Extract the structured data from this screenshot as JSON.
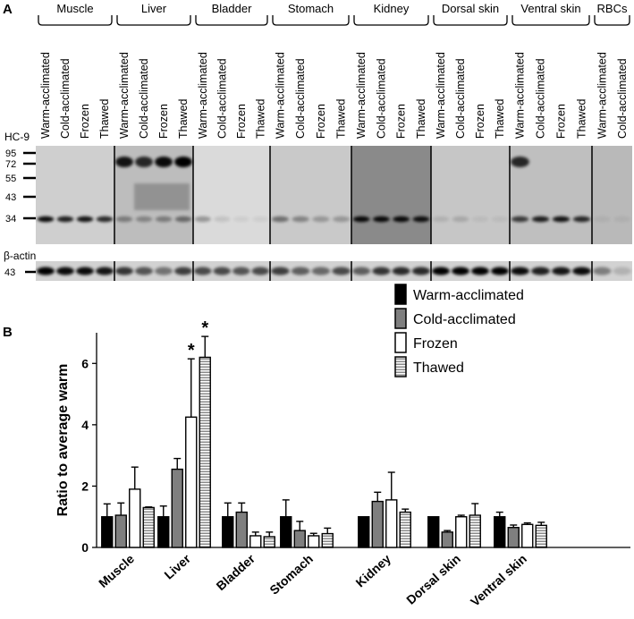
{
  "panel_a": {
    "label": "A",
    "tissues": [
      "Muscle",
      "Liver",
      "Bladder",
      "Stomach",
      "Kidney",
      "Dorsal skin",
      "Ventral skin",
      "RBCs"
    ],
    "lane_labels": [
      "Warm-acclimated",
      "Cold-acclimated",
      "Frozen",
      "Thawed"
    ],
    "rbc_lane_labels": [
      "Warm-acclimated",
      "Cold-acclimated"
    ],
    "blot1_label": "HC-9",
    "blot2_label": "β-actin",
    "markers": [
      "95",
      "72",
      "55",
      "43",
      "34"
    ],
    "actin_marker": "43"
  },
  "panel_b": {
    "label": "B",
    "significance_mark": "*"
  },
  "chart_data": {
    "type": "bar",
    "title": "",
    "xlabel": "",
    "ylabel": "Ratio to average warm",
    "ylim": [
      0,
      7
    ],
    "yticks": [
      "0",
      "2",
      "4",
      "6"
    ],
    "categories": [
      "Muscle",
      "Liver",
      "Bladder",
      "Stomach",
      "Kidney",
      "Dorsal skin",
      "Ventral skin"
    ],
    "series": [
      {
        "name": "Warm-acclimated",
        "color": "#000000",
        "pattern": "solid",
        "values": [
          1.0,
          1.0,
          1.0,
          1.0,
          1.0,
          1.0,
          1.0
        ],
        "errors": [
          0.42,
          0.35,
          0.45,
          0.55,
          0.0,
          0.0,
          0.15
        ]
      },
      {
        "name": "Cold-acclimated",
        "color": "#7f7f7f",
        "pattern": "solid",
        "values": [
          1.05,
          2.55,
          1.15,
          0.55,
          1.5,
          0.5,
          0.65
        ],
        "errors": [
          0.4,
          0.35,
          0.3,
          0.3,
          0.3,
          0.05,
          0.08
        ]
      },
      {
        "name": "Frozen",
        "color": "#ffffff",
        "pattern": "open",
        "values": [
          1.9,
          4.25,
          0.38,
          0.38,
          1.55,
          1.0,
          0.75
        ],
        "errors": [
          0.72,
          1.9,
          0.12,
          0.08,
          0.9,
          0.05,
          0.05
        ]
      },
      {
        "name": "Thawed",
        "color": "#dcdcdc",
        "pattern": "striped",
        "values": [
          1.3,
          6.2,
          0.35,
          0.45,
          1.15,
          1.05,
          0.72
        ],
        "errors": [
          0.02,
          0.68,
          0.15,
          0.18,
          0.1,
          0.38,
          0.1
        ]
      }
    ],
    "significant": [
      {
        "category": "Liver",
        "series": "Frozen"
      },
      {
        "category": "Liver",
        "series": "Thawed"
      }
    ],
    "legend_position": "top-right",
    "grid": false
  }
}
